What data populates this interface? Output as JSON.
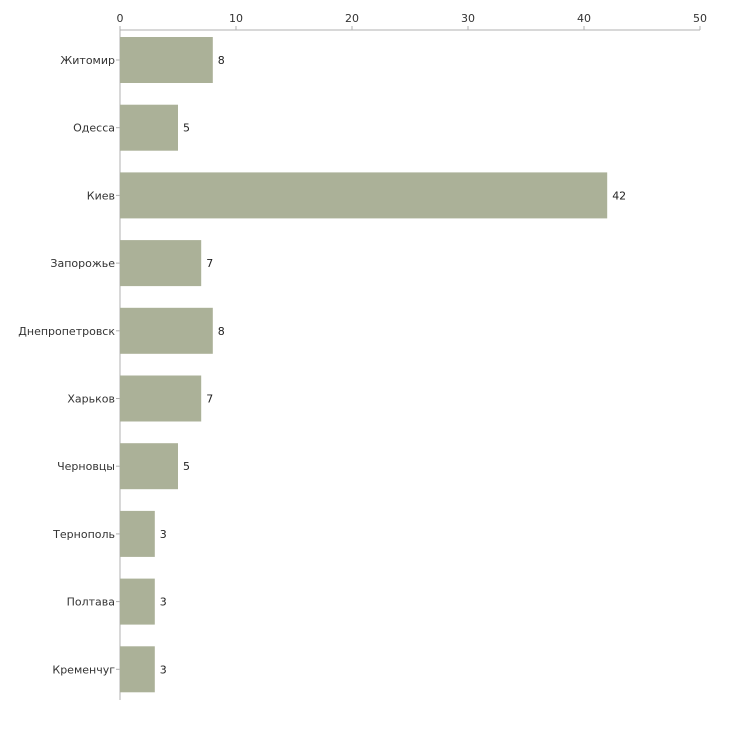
{
  "chart_data": {
    "type": "bar",
    "orientation": "horizontal",
    "categories": [
      "Житомир",
      "Одесса",
      "Киев",
      "Запорожье",
      "Днепропетровск",
      "Харьков",
      "Черновцы",
      "Тернополь",
      "Полтава",
      "Кременчуг"
    ],
    "values": [
      8,
      5,
      42,
      7,
      8,
      7,
      5,
      3,
      3,
      3
    ],
    "x_ticks": [
      0,
      10,
      20,
      30,
      40,
      50
    ],
    "xlim": [
      0,
      50
    ],
    "x_axis_position": "top",
    "grid": false,
    "legend": "none",
    "title": "",
    "xlabel": "",
    "ylabel": ""
  },
  "colors": {
    "bar": "#abb198",
    "axis": "#b0b0b0",
    "text": "#333333"
  }
}
